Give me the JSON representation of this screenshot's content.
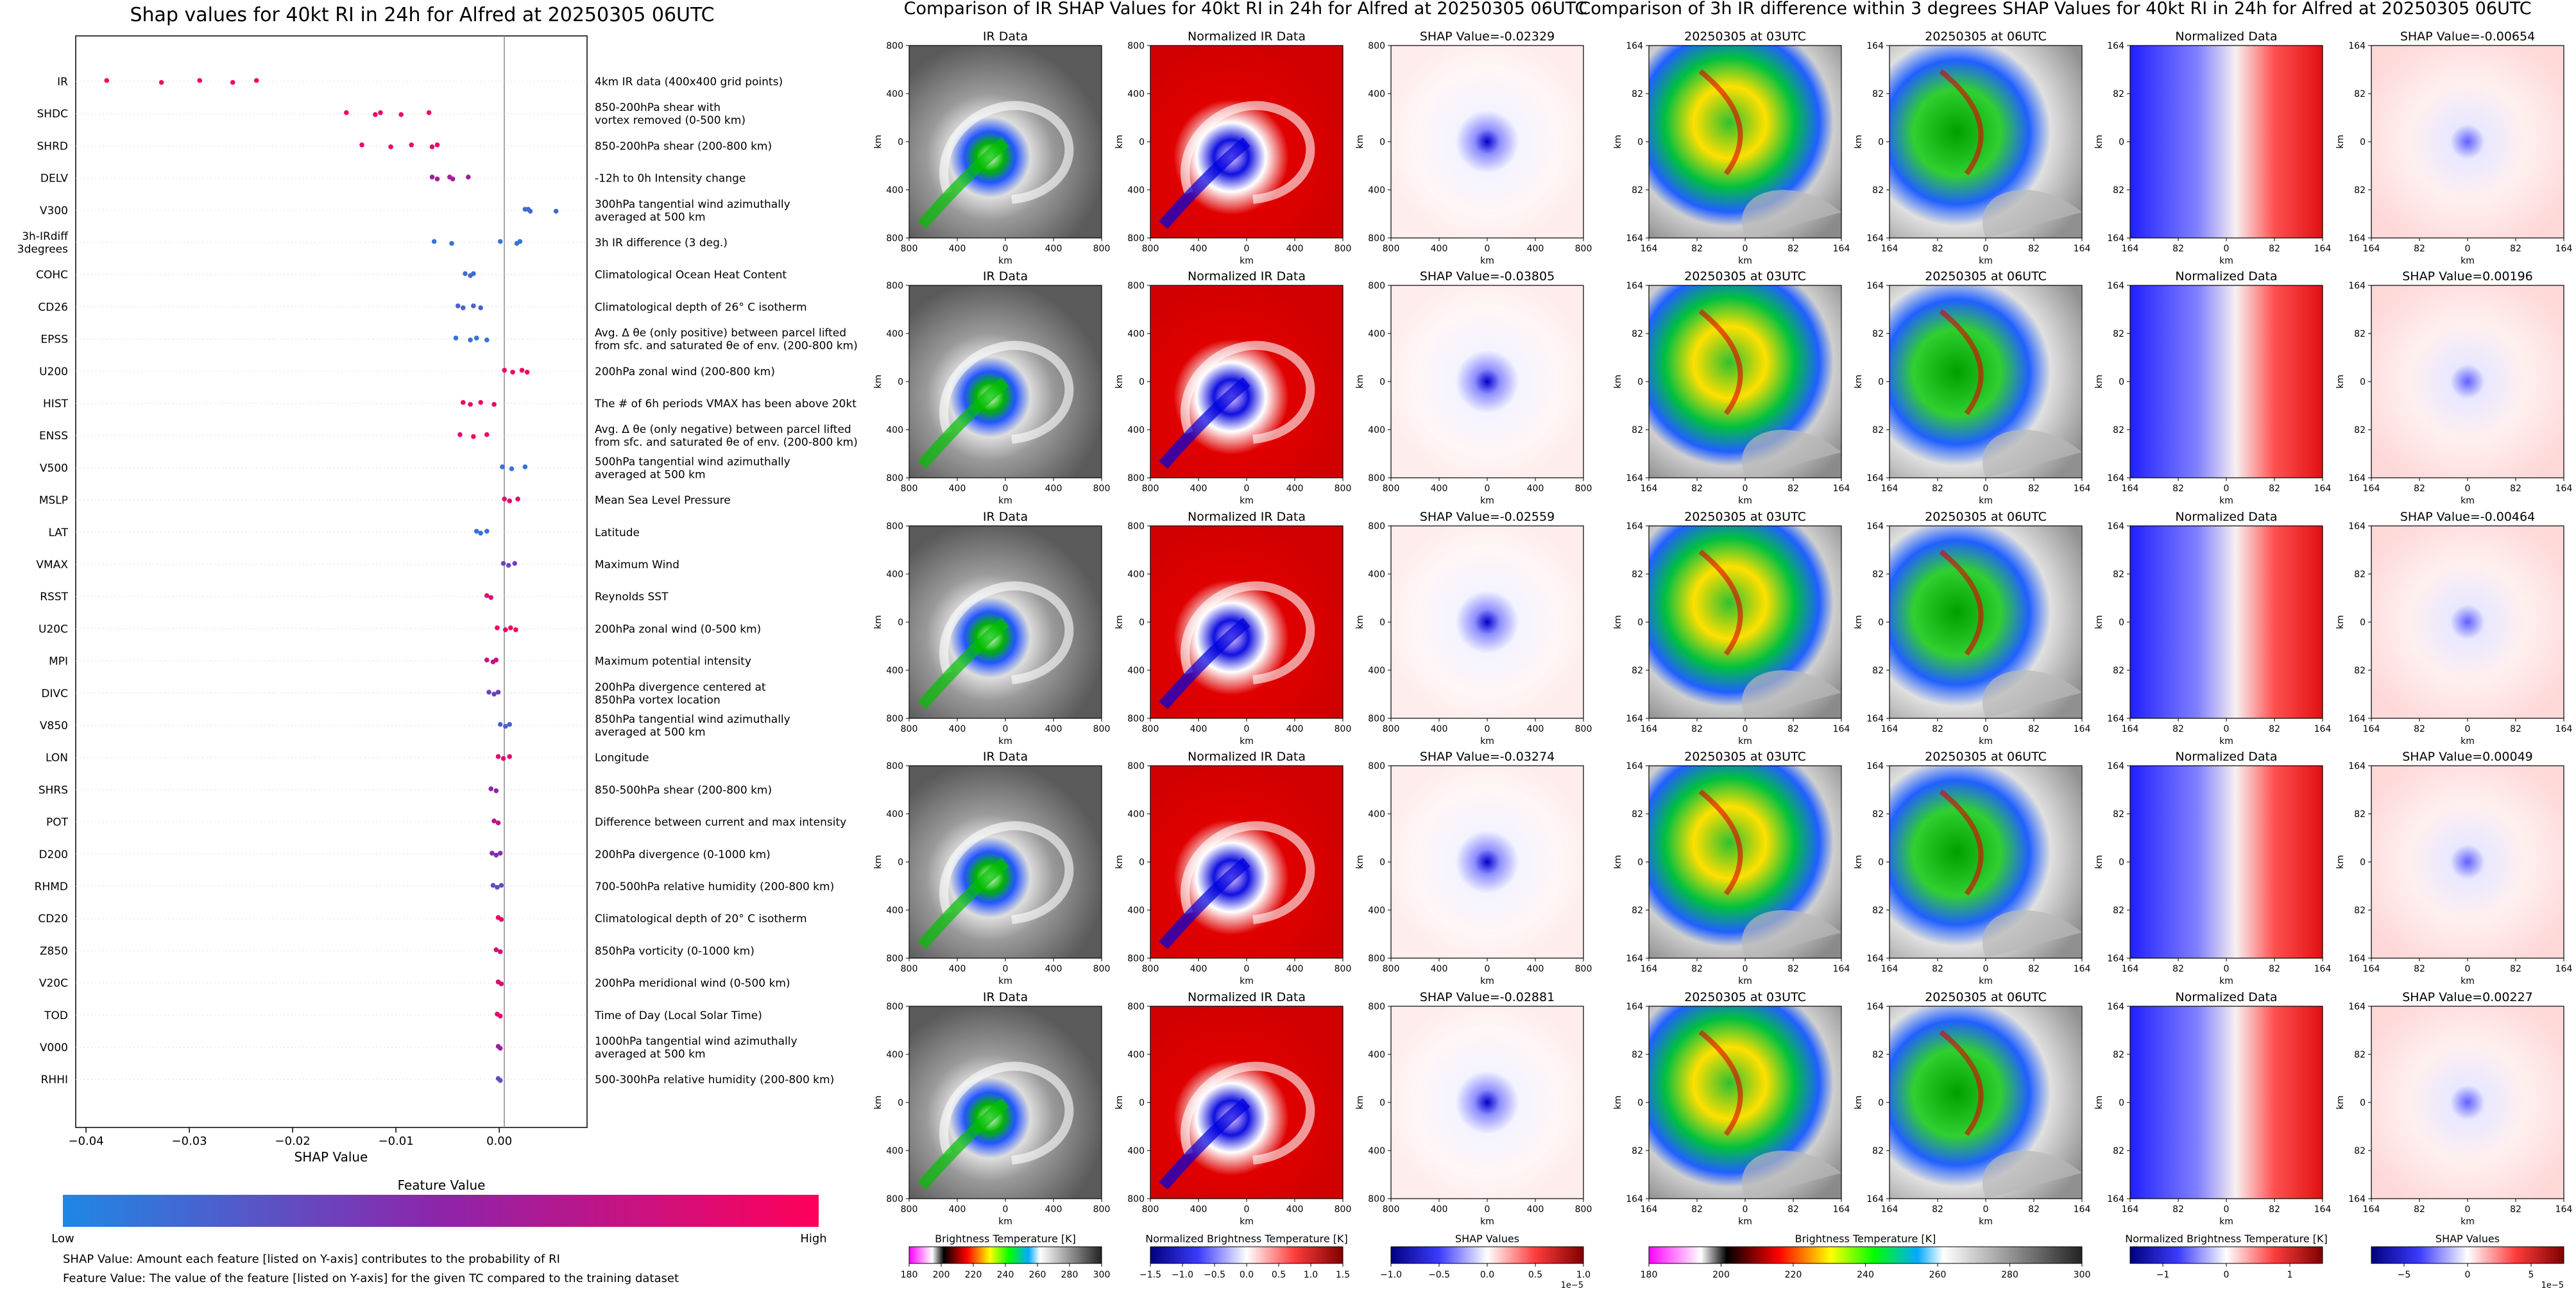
{
  "left_panel": {
    "title": "Shap values for 40kt RI in 24h for Alfred at 20250305 06UTC",
    "colorbar_title": "Feature Value",
    "low_label": "Low",
    "high_label": "High",
    "note1": "SHAP Value: Amount each feature [listed on Y-axis] contributes to the probability of RI",
    "note2": "Feature Value: The value of the feature [listed on Y-axis] for the given TC compared to the training dataset"
  },
  "mid_title": "Comparison of IR SHAP Values for 40kt RI in 24h for Alfred at 20250305 06UTC",
  "right_title": "Comparison of 3h IR difference within 3 degrees SHAP Values for 40kt RI in 24h for Alfred at 20250305 06UTC",
  "grid": {
    "ir_title": "IR Data",
    "norm_title": "Normalized IR Data",
    "t03_title": "20250305 at 03UTC",
    "t06_title": "20250305 at 06UTC",
    "normdata_title": "Normalized Data",
    "shap_prefix": "SHAP Value=",
    "ir_shap_values": [
      "-0.02329",
      "-0.03805",
      "-0.02559",
      "-0.03274",
      "-0.02881"
    ],
    "diff_shap_values": [
      "-0.00654",
      "0.00196",
      "-0.00464",
      "0.00049",
      "0.00227"
    ],
    "km_label": "km",
    "ticks_ir": [
      "800",
      "400",
      "0",
      "400",
      "800"
    ],
    "ticks_diff": [
      "164",
      "82",
      "0",
      "82",
      "164"
    ]
  },
  "colorbars": {
    "bt_label": "Brightness Temperature [K]",
    "bt_ticks": [
      "180",
      "200",
      "220",
      "240",
      "260",
      "280",
      "300"
    ],
    "bt_ticks_right": [
      "180",
      "200",
      "220",
      "240",
      "260",
      "280",
      "300"
    ],
    "nbt_label": "Normalized Brightness Temperature [K]",
    "nbt_ticks": [
      "−1.5",
      "−1.0",
      "−0.5",
      "0.0",
      "0.5",
      "1.0",
      "1.5"
    ],
    "nbt_ticks_right": [
      "−1",
      "0",
      "1"
    ],
    "shap_label": "SHAP Values",
    "shap_ticks": [
      "−1.0",
      "−0.5",
      "0.0",
      "0.5",
      "1.0"
    ],
    "shap_ticks_right": [
      "−5",
      "0",
      "5"
    ],
    "exp_label": "1e−5"
  },
  "chart_data": {
    "type": "scatter",
    "title": "Shap values for 40kt RI in 24h for Alfred at 20250305 06UTC",
    "xlabel": "SHAP Value",
    "xlim": [
      -0.041,
      0.0085
    ],
    "xticks": [
      "−0.04",
      "−0.03",
      "−0.02",
      "−0.01",
      "0.00"
    ],
    "xtick_values": [
      -0.04,
      -0.03,
      -0.02,
      -0.01,
      0.0
    ],
    "colormap": [
      "#1e88e5",
      "#8e24aa",
      "#ff0059"
    ],
    "features": [
      {
        "name": "IR",
        "desc": "4km IR data (400x400 grid points)",
        "values": [
          -0.038,
          -0.0327,
          -0.029,
          -0.0258,
          -0.0235
        ],
        "fv": 0.95
      },
      {
        "name": "SHDC",
        "desc": "850-200hPa shear with|vortex removed (0-500 km)",
        "values": [
          -0.0148,
          -0.012,
          -0.0115,
          -0.0095,
          -0.0068
        ],
        "fv": 0.92
      },
      {
        "name": "SHRD",
        "desc": "850-200hPa shear (200-800 km)",
        "values": [
          -0.0133,
          -0.0105,
          -0.0085,
          -0.0065,
          -0.006
        ],
        "fv": 0.9
      },
      {
        "name": "DELV",
        "desc": "-12h to 0h Intensity change",
        "values": [
          -0.0065,
          -0.006,
          -0.0048,
          -0.0045,
          -0.003
        ],
        "fv": 0.6
      },
      {
        "name": "V300",
        "desc": "300hPa tangential wind azimuthally|averaged at 500 km",
        "values": [
          0.0025,
          0.003,
          0.0028,
          0.0055
        ],
        "fv": 0.15
      },
      {
        "name": "3h-IRdiff|3degrees",
        "desc": "3h IR difference (3 deg.)",
        "values": [
          -0.0063,
          -0.0046,
          0.0001,
          0.0017,
          0.002
        ],
        "fv": 0.1
      },
      {
        "name": "COHC",
        "desc": "Climatological Ocean Heat Content",
        "values": [
          -0.0033,
          -0.0028,
          -0.0025
        ],
        "fv": 0.15
      },
      {
        "name": "CD26",
        "desc": "Climatological depth of 26° C isotherm",
        "values": [
          -0.004,
          -0.0035,
          -0.0025,
          -0.0018
        ],
        "fv": 0.2
      },
      {
        "name": "EPSS",
        "desc": "Avg. Δ θe (only positive) between parcel lifted|from sfc. and saturated θe of env. (200-800 km)",
        "values": [
          -0.0042,
          -0.0028,
          -0.0022,
          -0.0012
        ],
        "fv": 0.1
      },
      {
        "name": "U200",
        "desc": "200hPa zonal wind (200-800 km)",
        "values": [
          0.0005,
          0.0013,
          0.0022,
          0.0027
        ],
        "fv": 0.95
      },
      {
        "name": "HIST",
        "desc": "The # of 6h periods VMAX has been above 20kt",
        "values": [
          -0.0035,
          -0.0028,
          -0.0018,
          -0.0005
        ],
        "fv": 0.93
      },
      {
        "name": "ENSS",
        "desc": "Avg. Δ θe (only negative) between parcel lifted|from sfc. and saturated θe of env. (200-800 km)",
        "values": [
          -0.0038,
          -0.0025,
          -0.0012
        ],
        "fv": 0.92
      },
      {
        "name": "V500",
        "desc": "500hPa tangential wind azimuthally|averaged at 500 km",
        "values": [
          0.0003,
          0.0012,
          0.0025
        ],
        "fv": 0.1
      },
      {
        "name": "MSLP",
        "desc": "Mean Sea Level Pressure",
        "values": [
          0.0005,
          0.001,
          0.0018
        ],
        "fv": 0.9
      },
      {
        "name": "LAT",
        "desc": "Latitude",
        "values": [
          -0.0022,
          -0.0018,
          -0.0012
        ],
        "fv": 0.12
      },
      {
        "name": "VMAX",
        "desc": "Maximum Wind",
        "values": [
          0.0004,
          0.0009,
          0.0015
        ],
        "fv": 0.35
      },
      {
        "name": "RSST",
        "desc": "Reynolds SST",
        "values": [
          -0.0012,
          -0.0008
        ],
        "fv": 0.85
      },
      {
        "name": "U20C",
        "desc": "200hPa zonal wind (0-500 km)",
        "values": [
          -0.0002,
          0.0006,
          0.0011,
          0.0016
        ],
        "fv": 0.93
      },
      {
        "name": "MPI",
        "desc": "Maximum potential intensity",
        "values": [
          -0.0012,
          -0.0006,
          -0.0003
        ],
        "fv": 0.75
      },
      {
        "name": "DIVC",
        "desc": "200hPa divergence centered at|850hPa vortex location",
        "values": [
          -0.001,
          -0.0005,
          -0.0001
        ],
        "fv": 0.35
      },
      {
        "name": "V850",
        "desc": "850hPa tangential wind azimuthally|averaged at 500 km",
        "values": [
          0.0001,
          0.0006,
          0.001
        ],
        "fv": 0.2
      },
      {
        "name": "LON",
        "desc": "Longitude",
        "values": [
          -0.0001,
          0.0004,
          0.001
        ],
        "fv": 0.88
      },
      {
        "name": "SHRS",
        "desc": "850-500hPa shear (200-800 km)",
        "values": [
          -0.0008,
          -0.0003
        ],
        "fv": 0.5
      },
      {
        "name": "POT",
        "desc": "Difference between current and max intensity",
        "values": [
          -0.0005,
          -0.0001
        ],
        "fv": 0.7
      },
      {
        "name": "D200",
        "desc": "200hPa divergence (0-1000 km)",
        "values": [
          -0.0007,
          -0.0003,
          0.0001
        ],
        "fv": 0.45
      },
      {
        "name": "RHMD",
        "desc": "700-500hPa relative humidity (200-800 km)",
        "values": [
          -0.0006,
          -0.0002,
          0.0002
        ],
        "fv": 0.3
      },
      {
        "name": "CD20",
        "desc": "Climatological depth of 20° C isotherm",
        "values": [
          -0.0001,
          0.0002
        ],
        "fv": 0.88
      },
      {
        "name": "Z850",
        "desc": "850hPa vorticity (0-1000 km)",
        "values": [
          -0.0003,
          0.0001
        ],
        "fv": 0.8
      },
      {
        "name": "V20C",
        "desc": "200hPa meridional wind (0-500 km)",
        "values": [
          -0.0001,
          0.0002
        ],
        "fv": 0.85
      },
      {
        "name": "TOD",
        "desc": "Time of Day (Local Solar Time)",
        "values": [
          -0.0002,
          0.0001
        ],
        "fv": 0.9
      },
      {
        "name": "V000",
        "desc": "1000hPa tangential wind azimuthally|averaged at 500 km",
        "values": [
          -0.0001,
          0.0001
        ],
        "fv": 0.55
      },
      {
        "name": "RHHI",
        "desc": "500-300hPa relative humidity (200-800 km)",
        "values": [
          -0.0001,
          0.0001
        ],
        "fv": 0.3
      }
    ]
  }
}
